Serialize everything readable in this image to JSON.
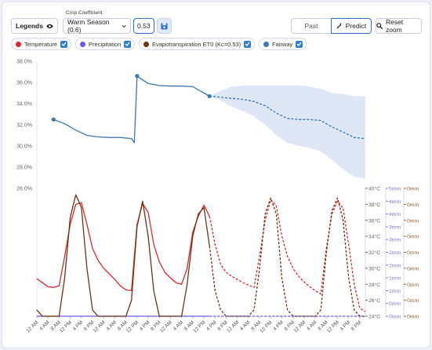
{
  "toolbar": {
    "legends_button": "Legends",
    "crop_label": "Crop Coefficient",
    "crop_select": "Warm Season (0.6)",
    "kc_input": "0.53",
    "past": "Past",
    "predict": "Predict",
    "reset_zoom": "Reset zoom"
  },
  "chart_data": [
    {
      "type": "line",
      "xlim": [
        0,
        118
      ],
      "ylim": [
        26,
        38
      ],
      "yticks": [
        {
          "value": 26,
          "label": "26.0%"
        },
        {
          "value": 28,
          "label": "28.0%"
        },
        {
          "value": 30,
          "label": "30.0%"
        },
        {
          "value": 32,
          "label": "32.0%"
        },
        {
          "value": 34,
          "label": "34.0%"
        },
        {
          "value": 36,
          "label": "36.0%"
        },
        {
          "value": 38,
          "label": "38.0%"
        }
      ],
      "series": [
        {
          "name": "Fairway",
          "color": "#3b78b4",
          "x": [
            6,
            10,
            14,
            18,
            22,
            26,
            30,
            34,
            35,
            36,
            40,
            44,
            48,
            52,
            56,
            60,
            62
          ],
          "values": [
            32.5,
            32.1,
            31.5,
            31.0,
            30.85,
            30.8,
            30.8,
            30.7,
            30.3,
            36.6,
            35.9,
            35.7,
            35.65,
            35.65,
            35.6,
            35.0,
            34.7
          ],
          "forecast_x": [
            62,
            66,
            70,
            74,
            78,
            82,
            86,
            90,
            94,
            98,
            102,
            106,
            110,
            114,
            118
          ],
          "forecast_values": [
            34.7,
            34.6,
            34.5,
            34.4,
            34.2,
            33.8,
            33.1,
            32.6,
            32.5,
            32.5,
            32.4,
            31.8,
            31.3,
            30.8,
            30.7
          ],
          "band_lower": [
            34.7,
            34.3,
            33.7,
            33.3,
            32.8,
            32.0,
            31.0,
            30.3,
            30.0,
            29.8,
            29.5,
            28.7,
            27.8,
            27.1,
            26.9
          ],
          "band_upper": [
            34.7,
            35.2,
            35.6,
            35.7,
            35.7,
            35.7,
            35.7,
            35.7,
            35.7,
            35.6,
            35.4,
            35.0,
            34.9,
            34.7,
            34.7
          ],
          "band_color": "#dfe6f5"
        }
      ]
    },
    {
      "type": "line",
      "xlim": [
        0,
        118
      ],
      "xticks": [
        {
          "value": 0,
          "label": "12 AM"
        },
        {
          "value": 4,
          "label": "4 AM"
        },
        {
          "value": 8,
          "label": "8 AM"
        },
        {
          "value": 12,
          "label": "12 PM"
        },
        {
          "value": 16,
          "label": "4 PM"
        },
        {
          "value": 20,
          "label": "8 PM"
        },
        {
          "value": 24,
          "label": "12 AM"
        },
        {
          "value": 28,
          "label": "4 AM"
        },
        {
          "value": 32,
          "label": "8 AM"
        },
        {
          "value": 36,
          "label": "12 PM"
        },
        {
          "value": 40,
          "label": "4 PM"
        },
        {
          "value": 44,
          "label": "8 PM"
        },
        {
          "value": 48,
          "label": "12 AM"
        },
        {
          "value": 52,
          "label": "4 AM"
        },
        {
          "value": 56,
          "label": "8 AM"
        },
        {
          "value": 60,
          "label": "12 PM"
        },
        {
          "value": 64,
          "label": "4 PM"
        },
        {
          "value": 68,
          "label": "8 PM"
        },
        {
          "value": 72,
          "label": "12 AM"
        },
        {
          "value": 76,
          "label": "4 AM"
        },
        {
          "value": 80,
          "label": "8 AM"
        },
        {
          "value": 84,
          "label": "12 PM"
        },
        {
          "value": 88,
          "label": "4 PM"
        },
        {
          "value": 92,
          "label": "8 PM"
        },
        {
          "value": 96,
          "label": "12 AM"
        },
        {
          "value": 100,
          "label": "4 AM"
        },
        {
          "value": 104,
          "label": "8 AM"
        },
        {
          "value": 108,
          "label": "12 PM"
        },
        {
          "value": 112,
          "label": "4 PM"
        },
        {
          "value": 116,
          "label": "8 PM"
        }
      ],
      "ylim": [
        24,
        40
      ],
      "yticks": [
        {
          "value": 24,
          "label": "24°C"
        },
        {
          "value": 26,
          "label": "26°C"
        },
        {
          "value": 28,
          "label": "28°C"
        },
        {
          "value": 30,
          "label": "30°C"
        },
        {
          "value": 32,
          "label": "32°C"
        },
        {
          "value": 34,
          "label": "34°C"
        },
        {
          "value": 36,
          "label": "36°C"
        },
        {
          "value": 38,
          "label": "38°C"
        },
        {
          "value": 40,
          "label": "40°C"
        }
      ],
      "y2lim": [
        0,
        5
      ],
      "y2ticks": [
        {
          "value": 0,
          "label": "0mm"
        },
        {
          "value": 0.5,
          "label": "0mm"
        },
        {
          "value": 1,
          "label": "1mm"
        },
        {
          "value": 1.5,
          "label": "1mm"
        },
        {
          "value": 2,
          "label": "2mm"
        },
        {
          "value": 2.5,
          "label": "2mm"
        },
        {
          "value": 3,
          "label": "3mm"
        },
        {
          "value": 3.5,
          "label": "3mm"
        },
        {
          "value": 4,
          "label": "4mm"
        },
        {
          "value": 4.5,
          "label": "4mm"
        },
        {
          "value": 5,
          "label": "5mm"
        }
      ],
      "y2_color": "#8877e0",
      "y3lim": [
        0,
        0.4
      ],
      "y3ticks": [
        {
          "value": 0,
          "label": "0mm"
        },
        {
          "value": 0.05,
          "label": "0mm"
        },
        {
          "value": 0.1,
          "label": "0mm"
        },
        {
          "value": 0.15,
          "label": "0mm"
        },
        {
          "value": 0.2,
          "label": "0mm"
        },
        {
          "value": 0.25,
          "label": "0mm"
        },
        {
          "value": 0.3,
          "label": "0mm"
        },
        {
          "value": 0.35,
          "label": "0mm"
        },
        {
          "value": 0.4,
          "label": "0mm"
        }
      ],
      "y3_color": "#a0603a",
      "x": [
        0,
        2,
        4,
        6,
        8,
        10,
        12,
        14,
        16,
        18,
        20,
        22,
        24,
        26,
        28,
        30,
        32,
        34,
        36,
        38,
        40,
        42,
        44,
        46,
        48,
        50,
        52,
        54,
        56,
        58,
        60,
        62
      ],
      "forecast_x": [
        62,
        64,
        66,
        68,
        70,
        72,
        74,
        76,
        78,
        80,
        82,
        84,
        86,
        88,
        90,
        92,
        94,
        96,
        98,
        100,
        102,
        104,
        106,
        108,
        110,
        112,
        114,
        116,
        118
      ],
      "series": [
        {
          "name": "Temperature",
          "color": "#e3262d",
          "axis": "y",
          "values": [
            28.7,
            28.2,
            27.7,
            27.6,
            27.8,
            31.5,
            35.5,
            38.0,
            38.2,
            35.5,
            32.5,
            31.0,
            30.0,
            29.3,
            28.6,
            27.8,
            27.3,
            27.2,
            35.5,
            38.1,
            37.0,
            33.0,
            30.8,
            29.5,
            28.8,
            28.2,
            28.0,
            30.0,
            34.5,
            36.5,
            37.9,
            36.5
          ],
          "forecast_values": [
            36.5,
            33.0,
            30.5,
            29.5,
            29.0,
            28.6,
            28.2,
            27.9,
            27.6,
            31.5,
            36.0,
            38.6,
            37.8,
            34.0,
            31.5,
            30.0,
            29.0,
            28.3,
            27.7,
            27.2,
            26.8,
            32.5,
            36.8,
            38.4,
            37.5,
            33.0,
            28.0,
            25.0,
            24.6
          ]
        },
        {
          "name": "Precipitation",
          "color": "#6a5be6",
          "axis": "y2",
          "values": [
            0,
            0,
            0,
            0,
            0,
            0,
            0,
            0,
            0,
            0,
            0,
            0,
            0,
            0,
            0,
            0,
            0,
            0,
            0,
            0,
            0,
            0,
            0,
            0,
            0,
            0,
            0,
            0,
            0,
            0,
            0,
            0
          ],
          "forecast_values": [
            0,
            0,
            0,
            0,
            0,
            0,
            0,
            0,
            0,
            0,
            0,
            0,
            0,
            0,
            0,
            0,
            0,
            0,
            0,
            0,
            0,
            0,
            0,
            0,
            0,
            0,
            0,
            0,
            0
          ]
        },
        {
          "name": "Evapotranspiration ET0 (Kc=0.53)",
          "color": "#6b3416",
          "axis": "y3",
          "values": [
            0.02,
            0,
            0,
            0,
            0,
            0.12,
            0.31,
            0.38,
            0.34,
            0.15,
            0.02,
            0,
            0,
            0,
            0,
            0,
            0,
            0.05,
            0.28,
            0.36,
            0.25,
            0.08,
            0,
            0,
            0,
            0,
            0,
            0.1,
            0.25,
            0.32,
            0.34,
            0.22
          ],
          "forecast_values": [
            0.22,
            0.08,
            0.02,
            0,
            0,
            0,
            0,
            0,
            0.02,
            0.15,
            0.32,
            0.37,
            0.32,
            0.12,
            0.02,
            0,
            0,
            0,
            0,
            0,
            0.02,
            0.2,
            0.33,
            0.37,
            0.3,
            0.12,
            0.02,
            0,
            0
          ]
        }
      ]
    }
  ]
}
